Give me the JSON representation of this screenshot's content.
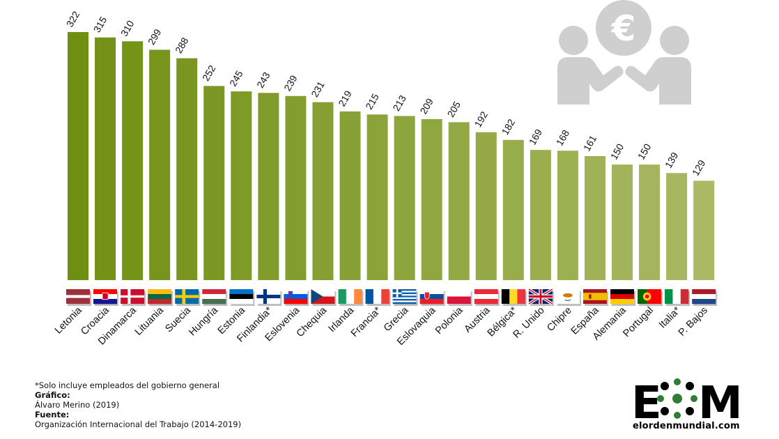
{
  "chart_data": {
    "type": "bar",
    "title": "",
    "xlabel": "",
    "ylabel": "",
    "ylim": [
      0,
      340
    ],
    "categories": [
      "Letonia",
      "Croacia",
      "Dinamarca",
      "Lituania",
      "Suecia",
      "Hungría",
      "Estonia",
      "Finlandia*",
      "Eslovenia",
      "Chequia",
      "Irlanda",
      "Francia*",
      "Grecia",
      "Eslovaquia",
      "Polonia",
      "Austria",
      "Bélgica*",
      "R. Unido",
      "Chipre",
      "España",
      "Alemania",
      "Portugal",
      "Italia*",
      "P. Bajos"
    ],
    "values": [
      322,
      315,
      310,
      299,
      288,
      252,
      245,
      243,
      239,
      231,
      219,
      215,
      213,
      209,
      205,
      192,
      182,
      169,
      168,
      161,
      150,
      150,
      139,
      129
    ],
    "value_labels": [
      "322",
      "315",
      "310",
      "299",
      "288",
      "252",
      "245",
      "243",
      "239",
      "231",
      "219",
      "215",
      "213",
      "209",
      "205",
      "192",
      "182",
      "169",
      "168",
      "161",
      "150",
      "150",
      "139",
      "129"
    ],
    "grid": false,
    "legend": "none",
    "bar_color_start": "#6f8f12",
    "bar_color_end": "#a9b964"
  },
  "flags": [
    "latvia",
    "croatia",
    "denmark",
    "lithuania",
    "sweden",
    "hungary",
    "estonia",
    "finland",
    "slovenia",
    "czechia",
    "ireland",
    "france",
    "greece",
    "slovakia",
    "poland",
    "austria",
    "belgium",
    "uk",
    "cyprus",
    "spain",
    "germany",
    "portugal",
    "italy",
    "netherlands"
  ],
  "icon": "people-euro-icon",
  "notes": {
    "footnote": "*Solo incluye empleados del gobierno general",
    "grafico_label": "Gráfico:",
    "grafico_value": "Álvaro Merino (2019)",
    "fuente_label": "Fuente:",
    "fuente_value": "Organización Internacional del Trabajo (2014-2019)"
  },
  "logo": {
    "letters_left": "E",
    "letters_right": "M",
    "domain": "elordenmundial.com"
  }
}
